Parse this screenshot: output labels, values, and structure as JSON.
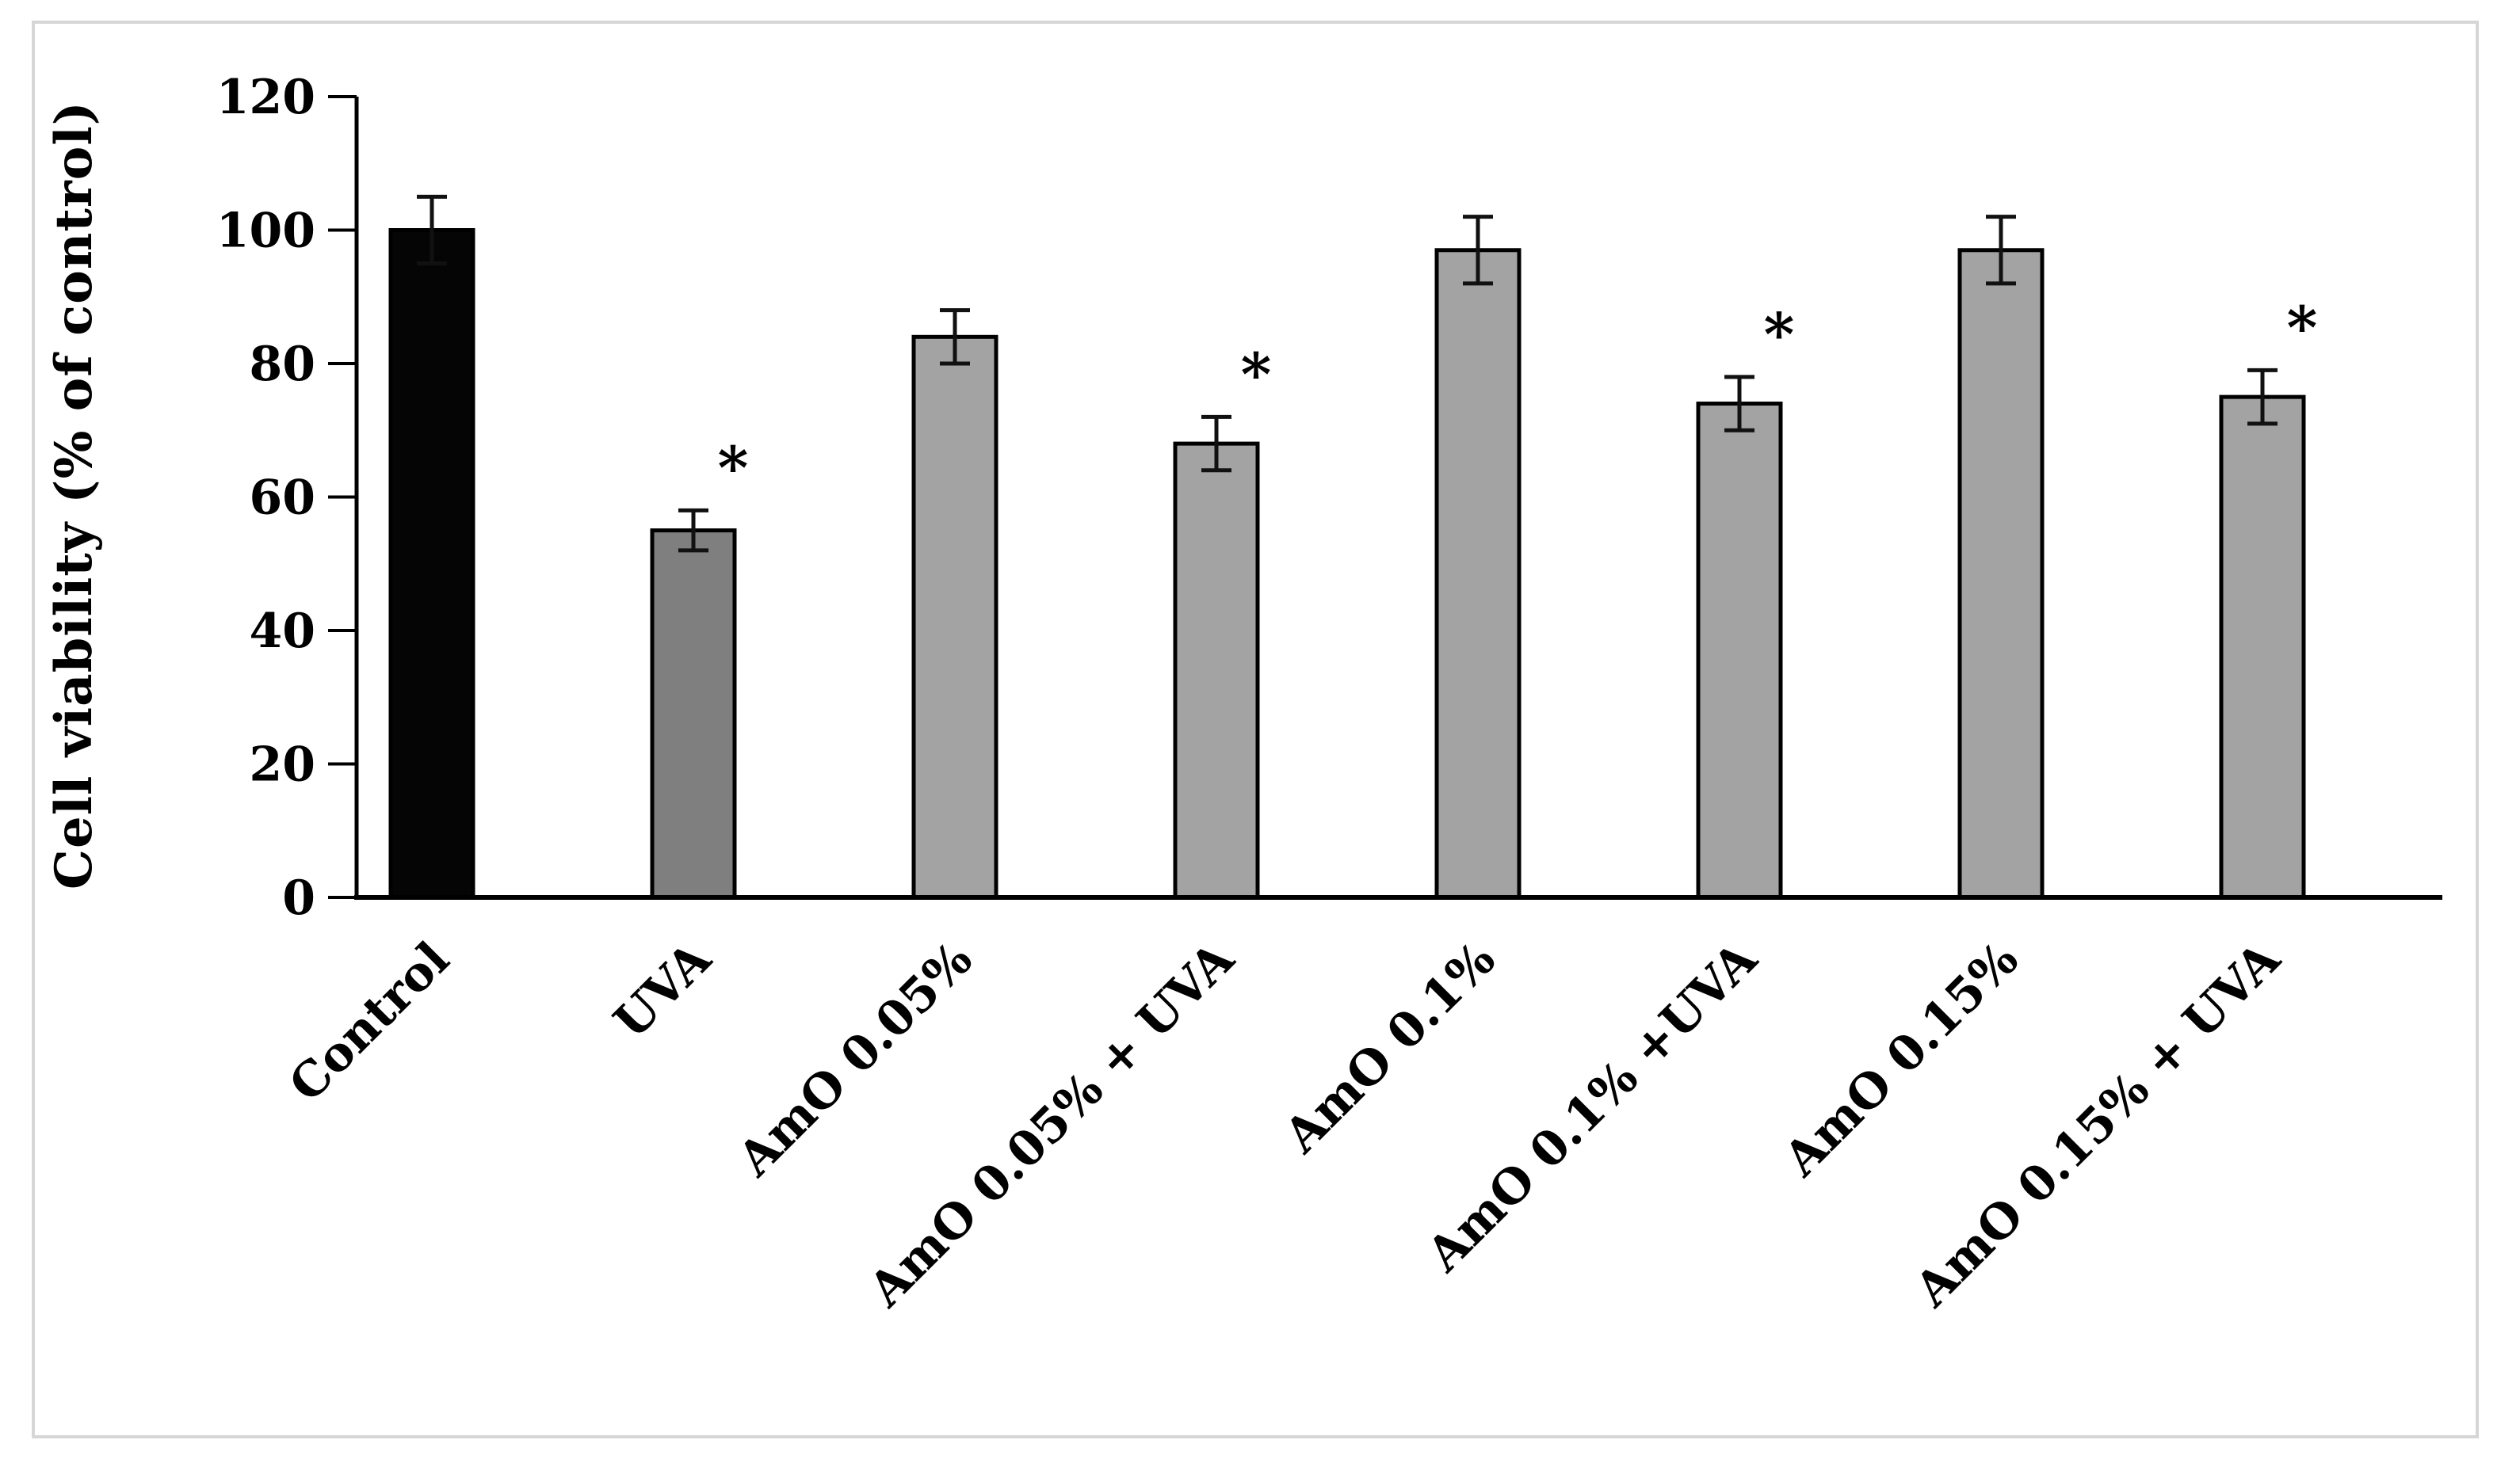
{
  "figure": {
    "background": "#ffffff",
    "border_color": "#d6d6d6"
  },
  "chart_data": {
    "type": "bar",
    "title": "",
    "xlabel": "",
    "ylabel": "Cell viability (% of control)",
    "ylim": [
      0,
      120
    ],
    "yticks": [
      0,
      20,
      40,
      60,
      80,
      100,
      120
    ],
    "grid": false,
    "legend": null,
    "categories": [
      "Control",
      "UVA",
      "AmO 0.05%",
      "AmO 0.05% + UVA",
      "AmO 0.1%",
      "AmO 0.1% +UVA",
      "AmO 0.15%",
      "AmO 0.15% + UVA"
    ],
    "values": [
      100,
      55,
      84,
      68,
      97,
      74,
      97,
      75
    ],
    "errors": [
      5,
      3,
      4,
      4,
      5,
      4,
      5,
      4
    ],
    "significant": [
      false,
      true,
      false,
      true,
      false,
      true,
      false,
      true
    ],
    "significance_marker": "*",
    "bar_colors": [
      "#050505",
      "#7f7f7f",
      "#a3a3a3",
      "#a3a3a3",
      "#a3a3a3",
      "#a3a3a3",
      "#a3a3a3",
      "#a3a3a3"
    ],
    "bar_outline_color": "#000000",
    "error_bar_color": "#111111",
    "asterisk_color": "#1f2d3a",
    "axis_color": "#000000",
    "x_label_rotation_deg": -45
  }
}
